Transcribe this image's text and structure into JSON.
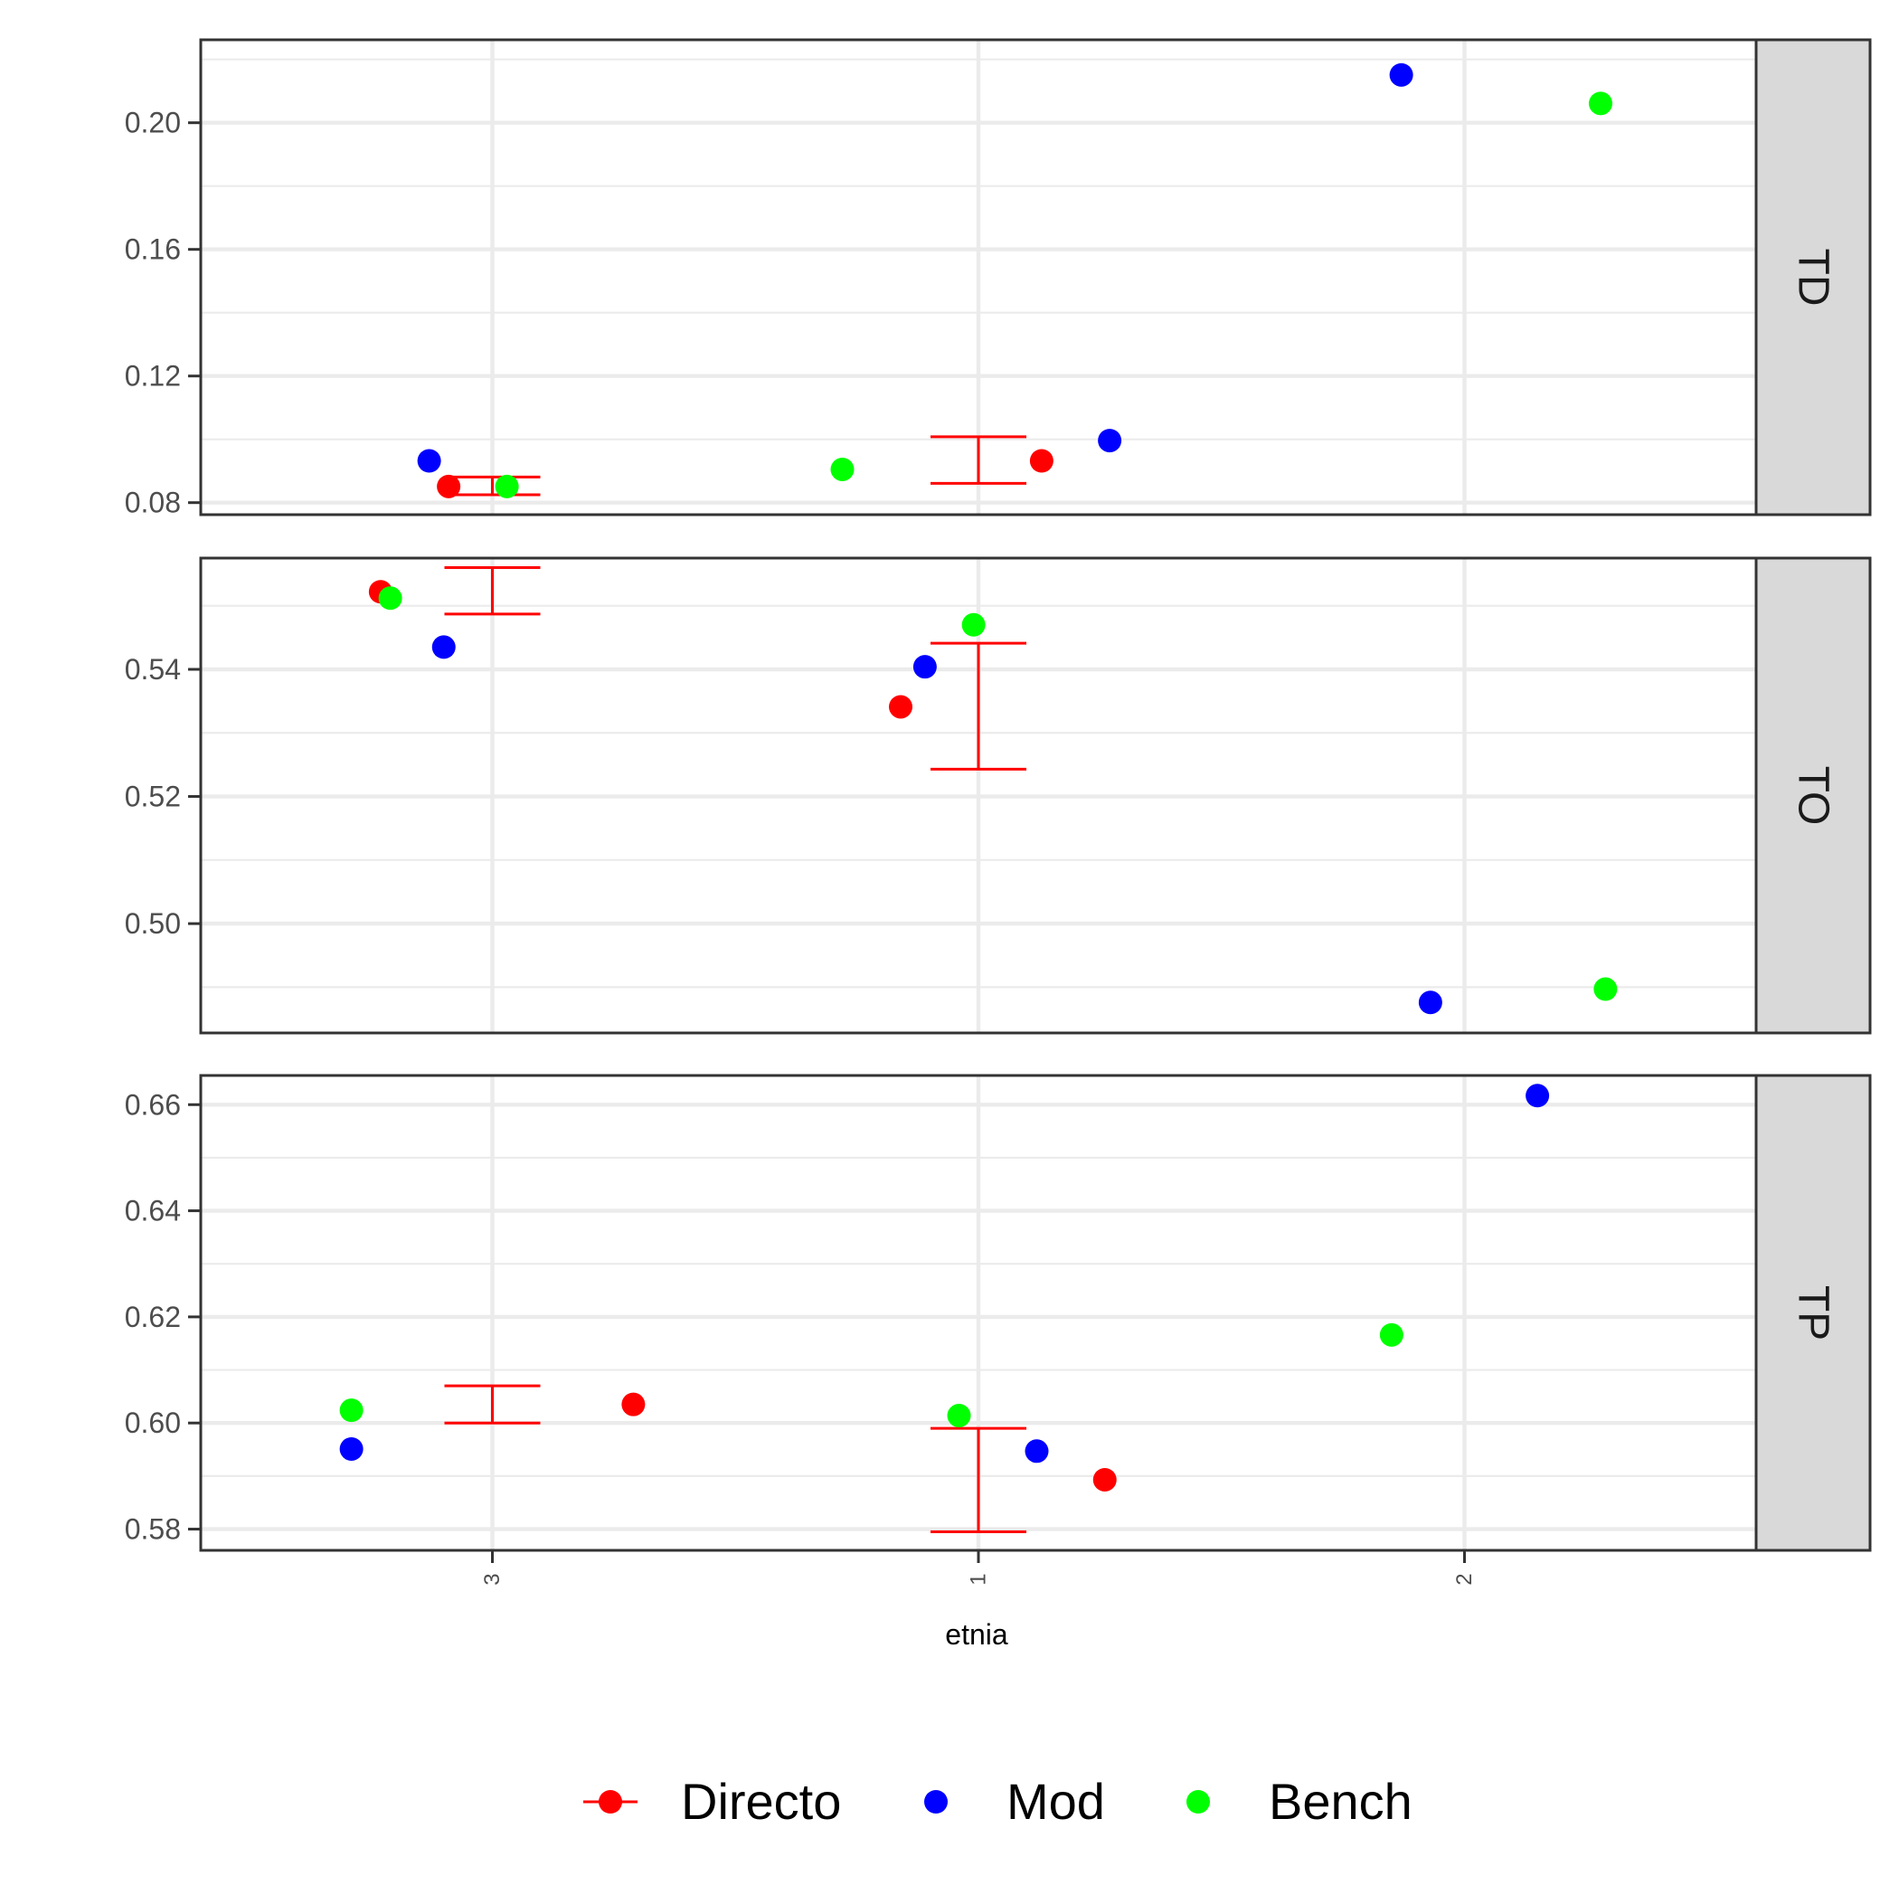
{
  "chart_data": {
    "type": "scatter",
    "x_axis": {
      "label": "etnia",
      "categories": [
        "3",
        "1",
        "2"
      ]
    },
    "legend": {
      "placement": "bottom",
      "items": [
        {
          "name": "Directo",
          "color": "#ff0000",
          "glyph": "point-with-errorbar"
        },
        {
          "name": "Mod",
          "color": "#0000ff",
          "glyph": "point"
        },
        {
          "name": "Bench",
          "color": "#00ff00",
          "glyph": "point"
        }
      ]
    },
    "colors": {
      "Directo": "#ff0000",
      "Mod": "#0000ff",
      "Bench": "#00ff00"
    },
    "grid": true,
    "panels": [
      {
        "strip": "TD",
        "ylim": [
          0.0762,
          0.2262
        ],
        "y_ticks": [
          0.08,
          0.12,
          0.16,
          0.2
        ],
        "y_tick_labels": [
          "0.08",
          "0.12",
          "0.16",
          "0.20"
        ],
        "errorbars": [
          {
            "category": "3",
            "lower": 0.0825,
            "upper": 0.0881
          },
          {
            "category": "1",
            "lower": 0.0861,
            "upper": 0.1008
          }
        ],
        "points": [
          {
            "series": "Mod",
            "x": 0.87,
            "y": 0.0932
          },
          {
            "series": "Directo",
            "x": 0.91,
            "y": 0.0851
          },
          {
            "series": "Bench",
            "x": 1.03,
            "y": 0.0851
          },
          {
            "series": "Bench",
            "x": 1.72,
            "y": 0.0905
          },
          {
            "series": "Directo",
            "x": 2.13,
            "y": 0.0932
          },
          {
            "series": "Mod",
            "x": 2.27,
            "y": 0.0996
          },
          {
            "series": "Mod",
            "x": 2.87,
            "y": 0.2151
          },
          {
            "series": "Bench",
            "x": 3.28,
            "y": 0.2061
          }
        ]
      },
      {
        "strip": "TO",
        "ylim": [
          0.4828,
          0.5575
        ],
        "y_ticks": [
          0.5,
          0.52,
          0.54
        ],
        "y_tick_labels": [
          "0.50",
          "0.52",
          "0.54"
        ],
        "errorbars": [
          {
            "category": "3",
            "lower": 0.5487,
            "upper": 0.556
          },
          {
            "category": "1",
            "lower": 0.5243,
            "upper": 0.5441
          }
        ],
        "points": [
          {
            "series": "Directo",
            "x": 0.77,
            "y": 0.5522
          },
          {
            "series": "Bench",
            "x": 0.79,
            "y": 0.5512
          },
          {
            "series": "Mod",
            "x": 0.9,
            "y": 0.5435
          },
          {
            "series": "Directo",
            "x": 1.84,
            "y": 0.5341
          },
          {
            "series": "Mod",
            "x": 1.89,
            "y": 0.5404
          },
          {
            "series": "Bench",
            "x": 1.99,
            "y": 0.547
          },
          {
            "series": "Mod",
            "x": 2.93,
            "y": 0.4876
          },
          {
            "series": "Bench",
            "x": 3.29,
            "y": 0.4897
          }
        ]
      },
      {
        "strip": "TP",
        "ylim": [
          0.576,
          0.6655
        ],
        "y_ticks": [
          0.58,
          0.6,
          0.62,
          0.64,
          0.66
        ],
        "y_tick_labels": [
          "0.58",
          "0.60",
          "0.62",
          "0.64",
          "0.66"
        ],
        "errorbars": [
          {
            "category": "3",
            "lower": 0.6,
            "upper": 0.607
          },
          {
            "category": "1",
            "lower": 0.5795,
            "upper": 0.599
          }
        ],
        "points": [
          {
            "series": "Bench",
            "x": 0.71,
            "y": 0.6024
          },
          {
            "series": "Mod",
            "x": 0.71,
            "y": 0.5951
          },
          {
            "series": "Directo",
            "x": 1.29,
            "y": 0.6035
          },
          {
            "series": "Bench",
            "x": 1.96,
            "y": 0.6014
          },
          {
            "series": "Mod",
            "x": 2.12,
            "y": 0.5947
          },
          {
            "series": "Directo",
            "x": 2.26,
            "y": 0.5893
          },
          {
            "series": "Bench",
            "x": 2.85,
            "y": 0.6166
          },
          {
            "series": "Mod",
            "x": 3.15,
            "y": 0.6617
          }
        ]
      }
    ]
  }
}
